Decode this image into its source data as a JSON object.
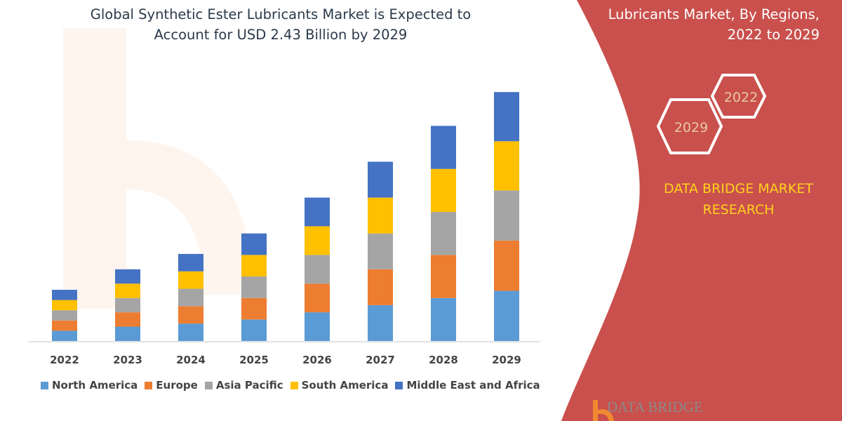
{
  "title": "Global Synthetic Ester Lubricants Market is Expected to Account for USD 2.43 Billion by 2029",
  "title_lines": [
    "Global Synthetic Ester Lubricants Market is Expected to",
    "Account for USD 2.43 Billion by 2029"
  ],
  "side_panel": {
    "heading_lines": [
      "Lubricants Market, By Regions,",
      "2022 to 2029"
    ],
    "hex_labels": [
      "2022",
      "2029"
    ],
    "brand_lines": [
      "DATA BRIDGE MARKET",
      "RESEARCH"
    ],
    "logo_text": "DATA BRIDGE",
    "panel_color": "#c9504c",
    "brand_color": "#ffd21f"
  },
  "chart_data": {
    "type": "bar",
    "stacked": true,
    "title": "Global Synthetic Ester Lubricants Market is Expected to Account for USD 2.43 Billion by 2029",
    "xlabel": "",
    "ylabel": "",
    "grid": false,
    "y_axis_shown": false,
    "legend_position": "bottom",
    "ylim": [
      0,
      2.5
    ],
    "categories": [
      "2022",
      "2023",
      "2024",
      "2025",
      "2026",
      "2027",
      "2028",
      "2029"
    ],
    "series": [
      {
        "name": "North America",
        "color": "#5b9bd5",
        "values": [
          0.1,
          0.14,
          0.17,
          0.21,
          0.28,
          0.35,
          0.42,
          0.49
        ]
      },
      {
        "name": "Europe",
        "color": "#ed7d31",
        "values": [
          0.1,
          0.14,
          0.17,
          0.21,
          0.28,
          0.35,
          0.42,
          0.49
        ]
      },
      {
        "name": "Asia Pacific",
        "color": "#a5a5a5",
        "values": [
          0.1,
          0.14,
          0.17,
          0.21,
          0.28,
          0.35,
          0.42,
          0.49
        ]
      },
      {
        "name": "South America",
        "color": "#ffc000",
        "values": [
          0.1,
          0.14,
          0.17,
          0.21,
          0.28,
          0.35,
          0.42,
          0.48
        ]
      },
      {
        "name": "Middle East and Africa",
        "color": "#4472c4",
        "values": [
          0.1,
          0.14,
          0.17,
          0.21,
          0.28,
          0.35,
          0.42,
          0.48
        ]
      }
    ]
  }
}
